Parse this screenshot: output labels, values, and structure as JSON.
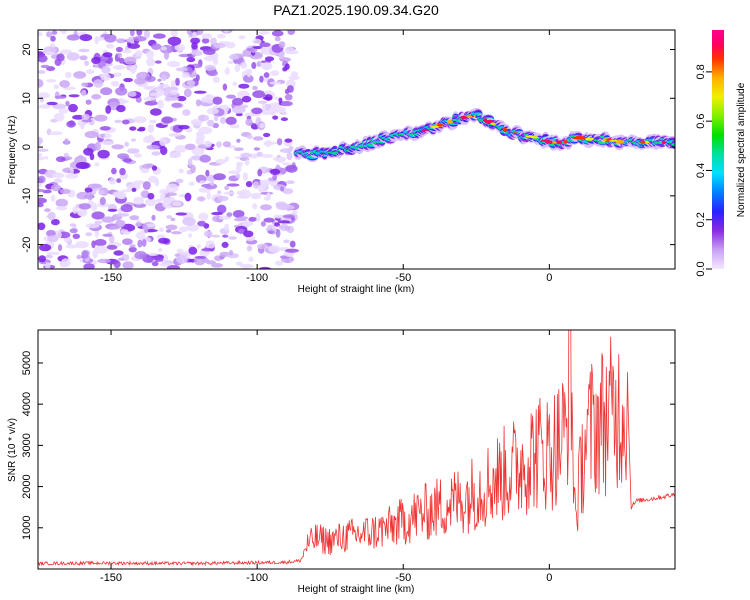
{
  "title": "PAZ1.2025.190.09.34.G20",
  "chart_data": [
    {
      "type": "heatmap",
      "xlabel": "Height of straight line (km)",
      "ylabel": "Frequency (Hz)",
      "xlim": [
        -175,
        43
      ],
      "ylim": [
        -25,
        24
      ],
      "x_ticks": [
        -150,
        -100,
        -50,
        0
      ],
      "y_ticks": [
        -20,
        -10,
        0,
        10,
        20
      ],
      "colorbar": {
        "label": "Normalized spectral amplitude",
        "range": [
          0,
          0.97
        ],
        "ticks": [
          0.0,
          0.2,
          0.4,
          0.6,
          0.8
        ]
      },
      "signal_ridge": {
        "x": [
          -86,
          -80,
          -75,
          -70,
          -65,
          -60,
          -55,
          -50,
          -45,
          -40,
          -35,
          -30,
          -25,
          -20,
          -15,
          -10,
          -5,
          0,
          5,
          10,
          15,
          20,
          25,
          30,
          35,
          43
        ],
        "y": [
          -1.5,
          -1.5,
          -1.0,
          -0.5,
          0.0,
          1.0,
          2.0,
          2.5,
          3.0,
          4.0,
          5.0,
          6.0,
          6.5,
          5.0,
          3.5,
          2.5,
          2.0,
          1.0,
          1.0,
          2.0,
          1.5,
          1.5,
          1.0,
          1.0,
          1.0,
          1.0
        ]
      },
      "noise_region_x": [
        -175,
        -87
      ]
    },
    {
      "type": "line",
      "xlabel": "Height of straight line (km)",
      "ylabel": "SNR (10 * v/v)",
      "xlim": [
        -175,
        43
      ],
      "ylim": [
        0,
        5800
      ],
      "x_ticks": [
        -150,
        -100,
        -50,
        0
      ],
      "y_ticks": [
        1000,
        2000,
        3000,
        4000,
        5000
      ],
      "series": [
        {
          "color": "#ee3333",
          "x": [
            -175,
            -150,
            -125,
            -100,
            -90,
            -85,
            -83,
            -80,
            -75,
            -70,
            -65,
            -60,
            -55,
            -50,
            -45,
            -40,
            -35,
            -30,
            -25,
            -20,
            -15,
            -10,
            -5,
            0,
            3,
            6,
            7,
            8,
            9,
            12,
            15,
            20,
            25,
            27,
            28,
            30,
            35,
            43
          ],
          "y": [
            130,
            140,
            130,
            150,
            160,
            200,
            550,
            700,
            650,
            750,
            800,
            850,
            950,
            1100,
            1250,
            1350,
            1500,
            1600,
            1800,
            2000,
            2200,
            2400,
            2700,
            2700,
            2900,
            3200,
            5800,
            2800,
            1200,
            2900,
            3300,
            3500,
            3700,
            3800,
            1500,
            1650,
            1700,
            1800
          ]
        }
      ]
    }
  ]
}
